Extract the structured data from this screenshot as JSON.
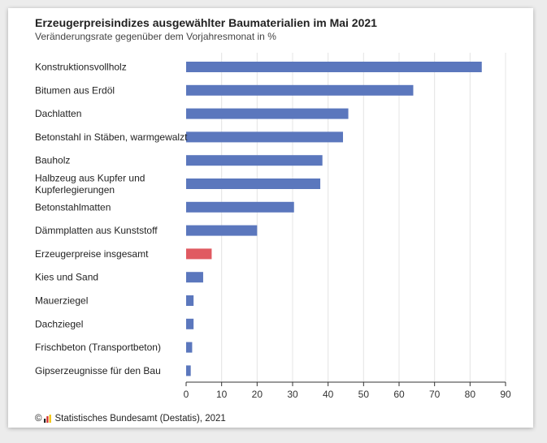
{
  "header": {
    "title": "Erzeugerpreisindizes ausgewählter Baumaterialien im Mai 2021",
    "subtitle": "Veränderungsrate gegenüber dem Vorjahresmonat in %"
  },
  "footer": {
    "copyright_symbol": "©",
    "logo_icon": "destatis-logo-icon",
    "source": "Statistisches Bundesamt (Destatis), 2021"
  },
  "colors": {
    "bar": "#5b77bd",
    "highlight": "#e05a61",
    "grid": "#e4e4e4",
    "axis": "#333333"
  },
  "chart_data": {
    "type": "bar",
    "orientation": "horizontal",
    "title": "Erzeugerpreisindizes ausgewählter Baumaterialien im Mai 2021",
    "subtitle": "Veränderungsrate gegenüber dem Vorjahresmonat in %",
    "categories": [
      "Konstruktionsvollholz",
      "Bitumen aus Erdöl",
      "Dachlatten",
      "Betonstahl in Stäben, warmgewalzt",
      "Bauholz",
      "Halbzeug aus Kupfer und Kupferlegierungen",
      "Betonstahlmatten",
      "Dämmplatten aus Kunststoff",
      "Erzeugerpreise insgesamt",
      "Kies und Sand",
      "Mauerziegel",
      "Dachziegel",
      "Frischbeton (Transportbeton)",
      "Gipserzeugnisse für den Bau"
    ],
    "category_lines": [
      [
        "Konstruktionsvollholz"
      ],
      [
        "Bitumen aus Erdöl"
      ],
      [
        "Dachlatten"
      ],
      [
        "Betonstahl in Stäben, warmgewalzt"
      ],
      [
        "Bauholz"
      ],
      [
        "Halbzeug aus Kupfer und",
        "Kupferlegierungen"
      ],
      [
        "Betonstahlmatten"
      ],
      [
        "Dämmplatten aus Kunststoff"
      ],
      [
        "Erzeugerpreise insgesamt"
      ],
      [
        "Kies und Sand"
      ],
      [
        "Mauerziegel"
      ],
      [
        "Dachziegel"
      ],
      [
        "Frischbeton (Transportbeton)"
      ],
      [
        "Gipserzeugnisse für den Bau"
      ]
    ],
    "values": [
      83.3,
      64.0,
      45.7,
      44.2,
      38.4,
      37.8,
      30.4,
      20.0,
      7.2,
      4.8,
      2.1,
      2.1,
      1.7,
      1.3
    ],
    "highlight_index": 8,
    "xlim": [
      0,
      90
    ],
    "xticks": [
      0,
      10,
      20,
      30,
      40,
      50,
      60,
      70,
      80,
      90
    ],
    "grid": true,
    "legend": "none"
  }
}
